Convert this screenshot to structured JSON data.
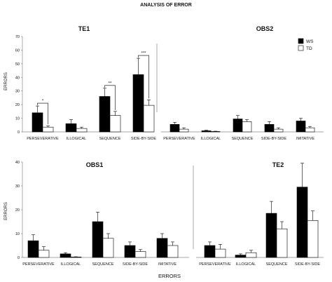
{
  "figure": {
    "title": "ANALYSIS OF ERROR",
    "x_label": "ERRORS",
    "y_label": "ERRORS"
  },
  "legend": {
    "items": [
      {
        "label": "WS",
        "color": "#000000"
      },
      {
        "label": "TD",
        "color": "#ffffff"
      }
    ],
    "placement": "top-right"
  },
  "chart_data": [
    {
      "type": "bar",
      "title": "TE1",
      "categories": [
        "PERSEVERATIVE",
        "ILLOGICAL",
        "SEQUENCE",
        "SIDE-BY-SIDE"
      ],
      "series": [
        {
          "name": "WS",
          "values": [
            14,
            6,
            26,
            42
          ],
          "errors": [
            5,
            3,
            6,
            12
          ]
        },
        {
          "name": "TD",
          "values": [
            3.5,
            2.5,
            12,
            19.5
          ],
          "errors": [
            1,
            1,
            3,
            4
          ]
        }
      ],
      "significance": [
        "*",
        "",
        "**",
        "***"
      ],
      "ylim": [
        0,
        70
      ],
      "yticks": [
        0,
        10,
        20,
        30,
        40,
        50,
        60,
        70
      ],
      "ylabel": "ERRORS"
    },
    {
      "type": "bar",
      "title": "OBS2",
      "categories": [
        "PERSEVERATIVE",
        "ILLOGICAL",
        "SEQUENCE",
        "SIDE-BY-SIDE",
        "IMITATIVE"
      ],
      "series": [
        {
          "name": "WS",
          "values": [
            5.5,
            0.8,
            9.5,
            5.5,
            8
          ],
          "errors": [
            1.5,
            0.4,
            2.5,
            2,
            2
          ]
        },
        {
          "name": "TD",
          "values": [
            2,
            0.3,
            7.5,
            2,
            3
          ],
          "errors": [
            1,
            0.2,
            1.5,
            1,
            1
          ]
        }
      ],
      "ylim": [
        0,
        70
      ]
    },
    {
      "type": "bar",
      "title": "OBS1",
      "categories": [
        "PERSEVERATIVE",
        "ILLOGICAL",
        "SEQUENCE",
        "SIDE-BY-SIDE",
        "IMITATIVE"
      ],
      "series": [
        {
          "name": "WS",
          "values": [
            7,
            1.5,
            15,
            5,
            8
          ],
          "errors": [
            2.5,
            0.5,
            4,
            1.5,
            2
          ]
        },
        {
          "name": "TD",
          "values": [
            3,
            0.2,
            8,
            2.5,
            5
          ],
          "errors": [
            1.5,
            0.1,
            2,
            0.8,
            1.5
          ]
        }
      ],
      "ylim": [
        0,
        40
      ],
      "yticks": [
        0,
        10,
        20,
        30,
        40
      ],
      "ylabel": "ERRORS"
    },
    {
      "type": "bar",
      "title": "TE2",
      "categories": [
        "PERSEVERATIVE",
        "ILLOGICAL",
        "SEQUENCE",
        "SIDE-BY-SIDE"
      ],
      "series": [
        {
          "name": "WS",
          "values": [
            5,
            1,
            18.5,
            29.5
          ],
          "errors": [
            1.5,
            0.5,
            5,
            10
          ]
        },
        {
          "name": "TD",
          "values": [
            3.5,
            2,
            12,
            15.5
          ],
          "errors": [
            2,
            1,
            3,
            4
          ]
        }
      ],
      "ylim": [
        0,
        40
      ]
    }
  ]
}
